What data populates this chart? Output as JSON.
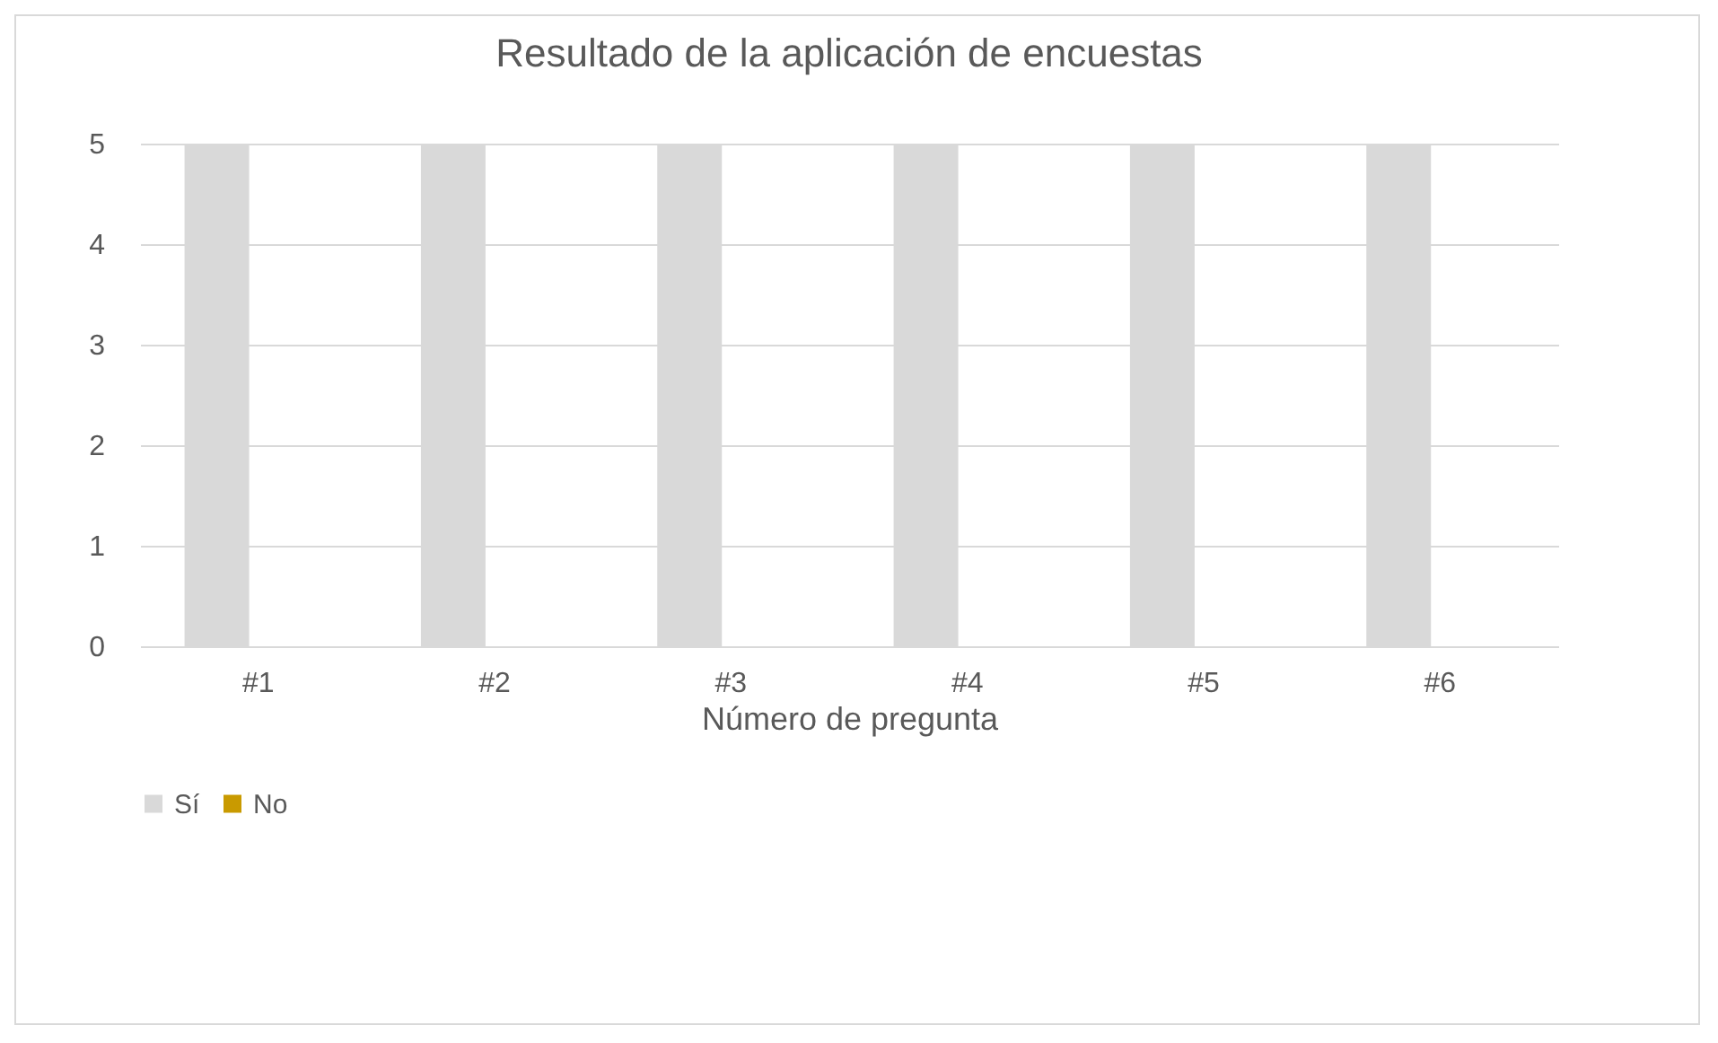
{
  "chart_data": {
    "type": "bar",
    "title": "Resultado de la aplicación de encuestas",
    "xlabel": "Número de pregunta",
    "categories": [
      "#1",
      "#2",
      "#3",
      "#4",
      "#5",
      "#6"
    ],
    "series": [
      {
        "name": "Sí",
        "color": "#d9d9d9",
        "values": [
          5,
          5,
          5,
          5,
          5,
          5
        ]
      },
      {
        "name": "No",
        "color": "#c99a00",
        "values": [
          0,
          0,
          0,
          0,
          0,
          0
        ]
      }
    ],
    "ylim": [
      0,
      5
    ],
    "yticks": [
      0,
      1,
      2,
      3,
      4,
      5
    ],
    "grid": "y",
    "legend": "bottom"
  }
}
